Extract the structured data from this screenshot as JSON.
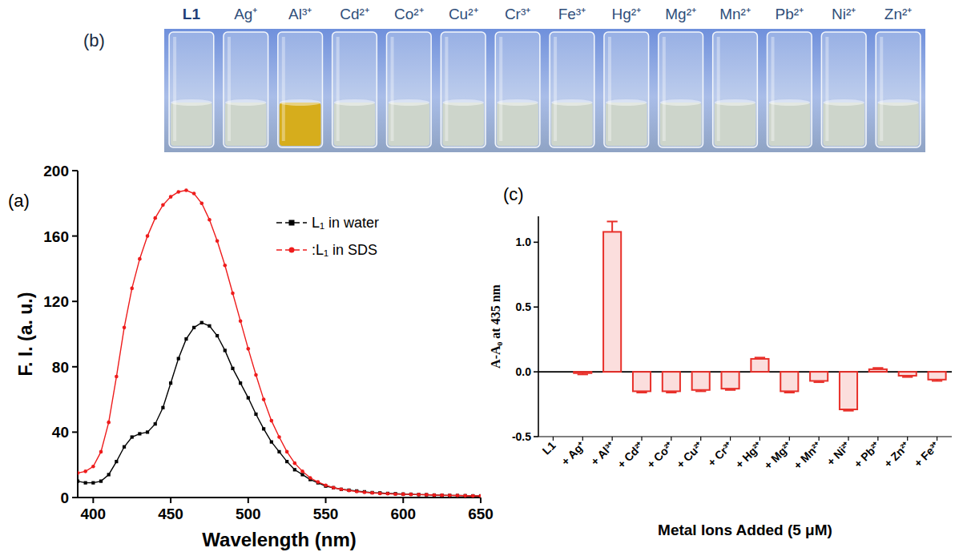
{
  "chart_data": [
    {
      "type": "line",
      "panel_label": "(a)",
      "xlabel": "Wavelength (nm)",
      "ylabel": "F. I. (a. u.)",
      "x": [
        390,
        395,
        400,
        405,
        410,
        415,
        420,
        425,
        430,
        435,
        440,
        445,
        450,
        455,
        460,
        465,
        470,
        475,
        480,
        485,
        490,
        495,
        500,
        505,
        510,
        515,
        520,
        525,
        530,
        535,
        540,
        545,
        550,
        555,
        560,
        565,
        570,
        575,
        580,
        585,
        590,
        595,
        600,
        605,
        610,
        615,
        620,
        625,
        630,
        635,
        640,
        645,
        650
      ],
      "xlim": [
        390,
        650
      ],
      "xticks": [
        400,
        450,
        500,
        550,
        600,
        650
      ],
      "ylim": [
        0,
        200
      ],
      "yticks": [
        0,
        40,
        80,
        120,
        160,
        200
      ],
      "legend": "top-right",
      "series": [
        {
          "name": "L₁ in water",
          "color": "#000000",
          "marker": "square",
          "line_style": "solid",
          "values": [
            10,
            9,
            9,
            10,
            14,
            22,
            31,
            37,
            39,
            40,
            45,
            55,
            70,
            85,
            97,
            104,
            107,
            105,
            99,
            90,
            79,
            70,
            61,
            51,
            42,
            34,
            28,
            22,
            17,
            14,
            11,
            9,
            7,
            6,
            5,
            4.5,
            4,
            3.5,
            3,
            2.8,
            2.5,
            2.3,
            2.1,
            2,
            1.8,
            1.7,
            1.5,
            1.4,
            1.3,
            1.2,
            1.1,
            1,
            1
          ]
        },
        {
          "name": ":L₁ in SDS",
          "color": "#ee1c1c",
          "marker": "circle",
          "line_style": "solid",
          "values": [
            15,
            16,
            19,
            28,
            46,
            74,
            104,
            128,
            146,
            160,
            171,
            179,
            184,
            187,
            188,
            186,
            180,
            170,
            157,
            142,
            125,
            108,
            91,
            75,
            60,
            47,
            37,
            28,
            21,
            16,
            12,
            9.5,
            7.5,
            6,
            5,
            4.3,
            3.7,
            3.2,
            2.8,
            2.5,
            2.3,
            2.1,
            2,
            1.9,
            1.8,
            1.7,
            1.5,
            1.4,
            1.3,
            1.2,
            1.1,
            1,
            1
          ]
        }
      ]
    },
    {
      "type": "bar",
      "panel_label": "(c)",
      "xlabel": "Metal Ions Added (5 μM)",
      "ylabel": "A-A₀ at 435 nm",
      "categories": [
        "L1",
        "+ Ag⁺",
        "+ Al³⁺",
        "+ Cd²⁺",
        "+ Co²⁺",
        "+ Cu²⁺",
        "+ Cr³⁺",
        "+ Hg²⁺",
        "+ Mg²⁺",
        "+ Mn²⁺",
        "+ Ni²⁺",
        "+ Pb²⁺",
        "+ Zn²⁺",
        "+ Fe³⁺"
      ],
      "values": [
        0,
        -0.01,
        1.08,
        -0.15,
        -0.15,
        -0.14,
        -0.13,
        0.1,
        -0.15,
        -0.07,
        -0.29,
        0.02,
        -0.03,
        -0.06
      ],
      "errors": [
        0,
        0.01,
        0.08,
        0.01,
        0.01,
        0.01,
        0.01,
        0.01,
        0.01,
        0.01,
        0.01,
        0.01,
        0.01,
        0.01
      ],
      "color": "#e8302a",
      "ylim": [
        -0.5,
        1.2
      ],
      "yticks": [
        -0.5,
        {
          "value": 0,
          "label": "0.0"
        },
        0.5,
        {
          "value": 1,
          "label": "1.0"
        }
      ]
    }
  ],
  "photo": {
    "panel_label": "(b)",
    "vials": [
      {
        "label": "L1",
        "color": "#cdd5cb"
      },
      {
        "label": "Ag⁺",
        "color": "#cdd5cb"
      },
      {
        "label": "Al³⁺",
        "color": "#d6ad1c"
      },
      {
        "label": "Cd²⁺",
        "color": "#cdd5cb"
      },
      {
        "label": "Co²⁺",
        "color": "#cdd5cb"
      },
      {
        "label": "Cu²⁺",
        "color": "#cdd5cb"
      },
      {
        "label": "Cr³⁺",
        "color": "#cdd5cb"
      },
      {
        "label": "Fe³⁺",
        "color": "#cdd5cb"
      },
      {
        "label": "Hg²⁺",
        "color": "#cdd5cb"
      },
      {
        "label": "Mg²⁺",
        "color": "#cdd5cb"
      },
      {
        "label": "Mn²⁺",
        "color": "#cdd5cb"
      },
      {
        "label": "Pb²⁺",
        "color": "#cdd5cb"
      },
      {
        "label": "Ni²⁺",
        "color": "#cdd5cb"
      },
      {
        "label": "Zn²⁺",
        "color": "#cdd5cb"
      }
    ]
  }
}
